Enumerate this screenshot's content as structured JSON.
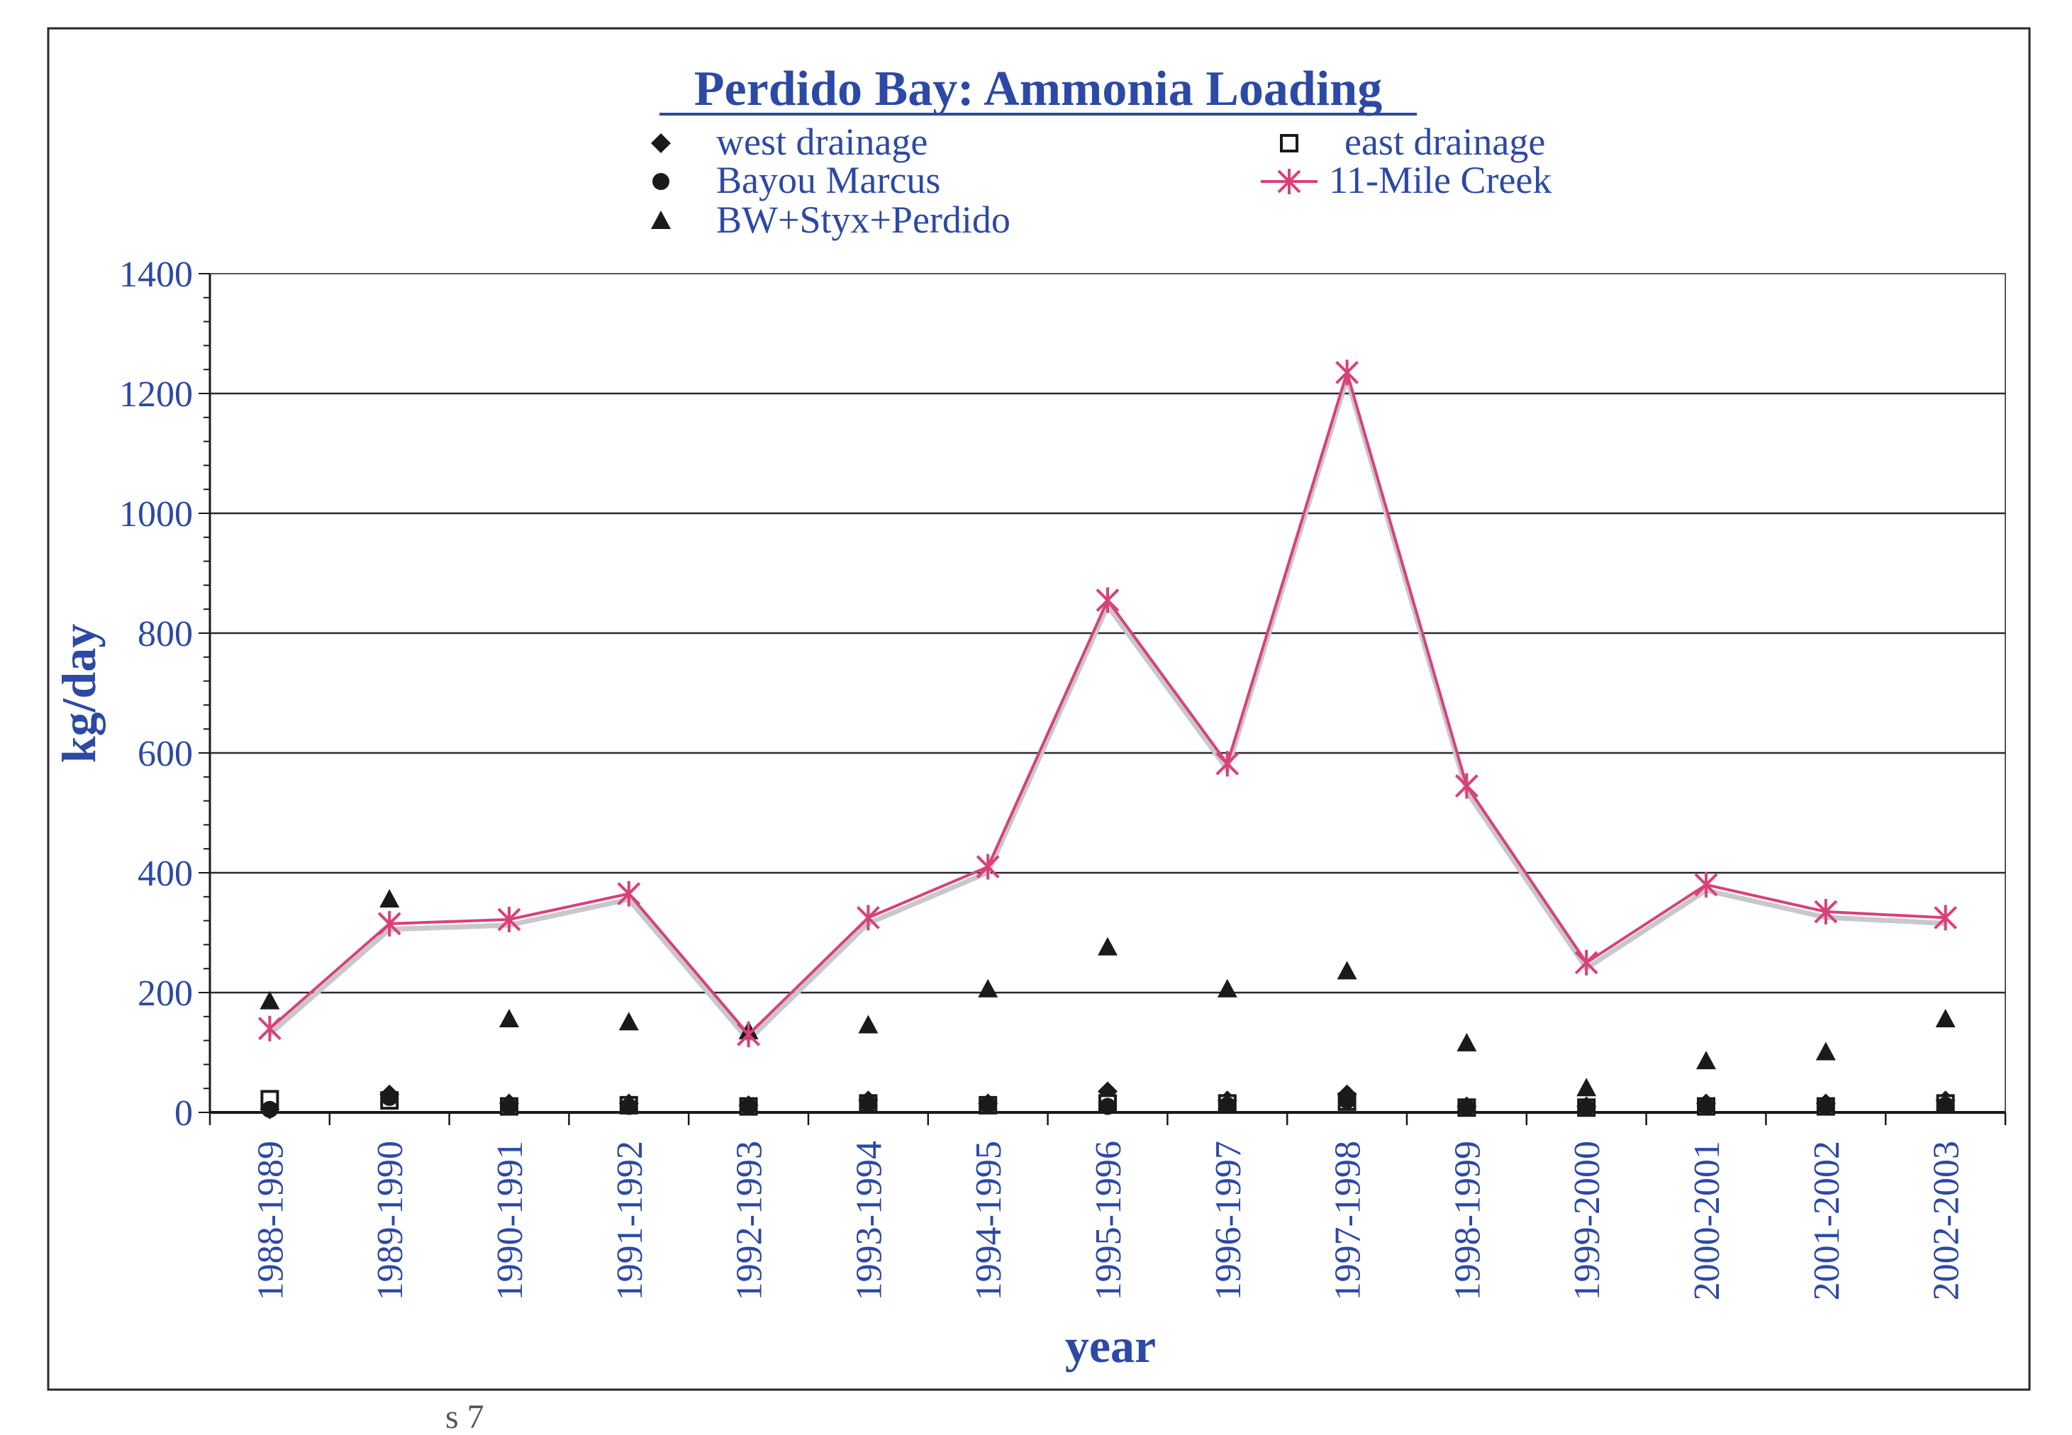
{
  "chart_data": {
    "type": "line",
    "title": "Perdido Bay: Ammonia Loading",
    "xlabel": "year",
    "ylabel": "kg/day",
    "ylim": [
      0,
      1400
    ],
    "yticks": [
      0,
      200,
      400,
      600,
      800,
      1000,
      1200,
      1400
    ],
    "grid": true,
    "legend_position": "top",
    "categories": [
      "1988-1989",
      "1989-1990",
      "1990-1991",
      "1991-1992",
      "1992-1993",
      "1993-1994",
      "1994-1995",
      "1995-1996",
      "1996-1997",
      "1997-1998",
      "1998-1999",
      "1999-2000",
      "2000-2001",
      "2001-2002",
      "2002-2003"
    ],
    "series": [
      {
        "name": "west drainage",
        "marker": "diamond",
        "line": false,
        "color": "#1a1a1a",
        "values": [
          5,
          30,
          15,
          15,
          12,
          20,
          15,
          35,
          20,
          30,
          10,
          10,
          15,
          15,
          20
        ]
      },
      {
        "name": "east drainage",
        "marker": "square-open",
        "line": false,
        "color": "#1a1a1a",
        "values": [
          22,
          20,
          10,
          12,
          10,
          15,
          12,
          15,
          15,
          18,
          8,
          8,
          10,
          10,
          15
        ]
      },
      {
        "name": "Bayou Marcus",
        "marker": "circle",
        "line": false,
        "color": "#1a1a1a",
        "values": [
          5,
          25,
          10,
          10,
          10,
          15,
          12,
          10,
          12,
          20,
          8,
          8,
          10,
          10,
          12
        ]
      },
      {
        "name": "11-Mile Creek",
        "marker": "star",
        "line": true,
        "color": "#d9407a",
        "values": [
          140,
          315,
          322,
          365,
          130,
          325,
          410,
          855,
          582,
          1235,
          545,
          250,
          380,
          335,
          325
        ]
      },
      {
        "name": "BW+Styx+Perdido",
        "marker": "triangle",
        "line": false,
        "color": "#1a1a1a",
        "values": [
          185,
          355,
          155,
          150,
          135,
          145,
          205,
          275,
          205,
          235,
          115,
          40,
          85,
          100,
          155
        ]
      }
    ]
  },
  "colors": {
    "axis_text": "#2c49a6",
    "series_line": "#d9407a",
    "markers": "#1a1a1a",
    "grid": "#2a2a2a"
  },
  "margin_note": "s 7"
}
